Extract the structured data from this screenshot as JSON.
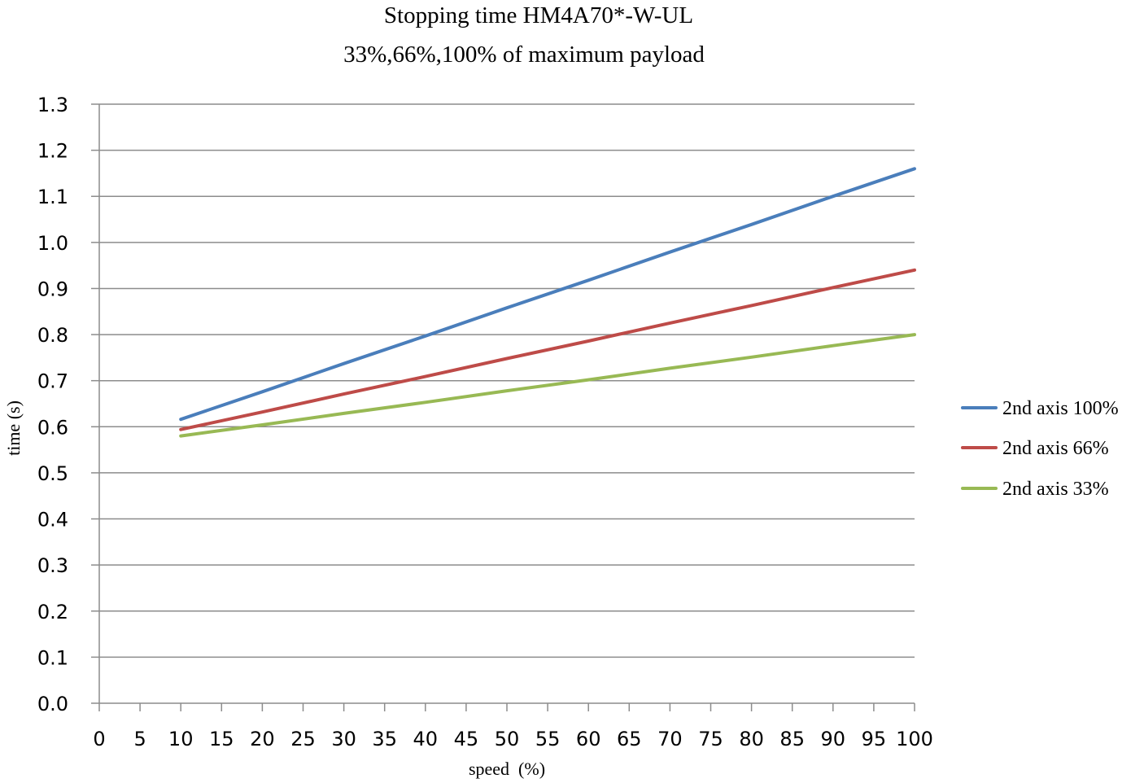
{
  "chart_data": {
    "type": "line",
    "title": "Stopping time HM4A70*-W-UL",
    "subtitle": "33%,66%,100% of maximum payload",
    "xlabel": "speed  (%)",
    "ylabel": "time (s)",
    "xlim": [
      0,
      100
    ],
    "ylim": [
      0.0,
      1.3
    ],
    "grid": true,
    "legend_position": "right",
    "x_ticks": [
      "0",
      "5",
      "10",
      "15",
      "20",
      "25",
      "30",
      "35",
      "40",
      "45",
      "50",
      "55",
      "60",
      "65",
      "70",
      "75",
      "80",
      "85",
      "90",
      "95",
      "100"
    ],
    "y_ticks": [
      "0.0",
      "0.1",
      "0.2",
      "0.3",
      "0.4",
      "0.5",
      "0.6",
      "0.7",
      "0.8",
      "0.9",
      "1.0",
      "1.1",
      "1.2",
      "1.3"
    ],
    "x": [
      10,
      20,
      30,
      40,
      50,
      60,
      70,
      80,
      90,
      100
    ],
    "series": [
      {
        "name": "2nd axis 100%",
        "color": "#4A7EBB",
        "values": [
          0.616,
          0.676,
          0.737,
          0.797,
          0.858,
          0.918,
          0.979,
          1.039,
          1.1,
          1.16
        ]
      },
      {
        "name": "2nd axis 66%",
        "color": "#BE4B48",
        "values": [
          0.594,
          0.632,
          0.671,
          0.709,
          0.748,
          0.786,
          0.825,
          0.863,
          0.902,
          0.94
        ]
      },
      {
        "name": "2nd axis 33%",
        "color": "#98B954",
        "values": [
          0.58,
          0.604,
          0.629,
          0.653,
          0.678,
          0.702,
          0.727,
          0.751,
          0.776,
          0.8
        ]
      }
    ]
  }
}
